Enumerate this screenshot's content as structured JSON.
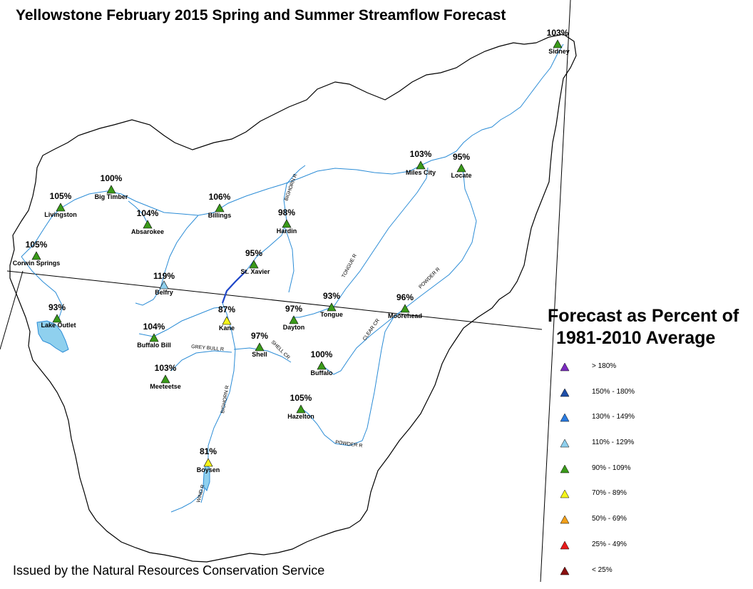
{
  "map": {
    "title": "Yellowstone February 2015 Spring and Summer Streamflow Forecast",
    "footer": "Issued by the Natural Resources Conservation Service",
    "legend": {
      "title_line1": "Forecast as Percent of",
      "title_line2": "1981-2010 Average",
      "items": [
        {
          "label": "> 180%",
          "color": "#7b2bbf"
        },
        {
          "label": "150% - 180%",
          "color": "#1f4fa8"
        },
        {
          "label": "130% - 149%",
          "color": "#2a7be0"
        },
        {
          "label": "110% - 129%",
          "color": "#8fd0ee"
        },
        {
          "label": "90% - 109%",
          "color": "#3a9a1a"
        },
        {
          "label": "70% - 89%",
          "color": "#f4f41a"
        },
        {
          "label": "50% - 69%",
          "color": "#f2a01a"
        },
        {
          "label": "25% - 49%",
          "color": "#e81a1a"
        },
        {
          "label": "< 25%",
          "color": "#8a1010"
        }
      ]
    },
    "stations": [
      {
        "name": "Sidney",
        "percent": "103%",
        "color": "#3a9a1a"
      },
      {
        "name": "Miles City",
        "percent": "103%",
        "color": "#3a9a1a"
      },
      {
        "name": "Locate",
        "percent": "95%",
        "color": "#3a9a1a"
      },
      {
        "name": "Big Timber",
        "percent": "100%",
        "color": "#3a9a1a"
      },
      {
        "name": "Livingston",
        "percent": "105%",
        "color": "#3a9a1a"
      },
      {
        "name": "Billings",
        "percent": "106%",
        "color": "#3a9a1a"
      },
      {
        "name": "Absarokee",
        "percent": "104%",
        "color": "#3a9a1a"
      },
      {
        "name": "Hardin",
        "percent": "98%",
        "color": "#3a9a1a"
      },
      {
        "name": "Corwin Springs",
        "percent": "105%",
        "color": "#3a9a1a"
      },
      {
        "name": "St. Xavier",
        "percent": "95%",
        "color": "#3a9a1a"
      },
      {
        "name": "Belfry",
        "percent": "119%",
        "color": "#8fd0ee"
      },
      {
        "name": "Tongue",
        "percent": "93%",
        "color": "#3a9a1a"
      },
      {
        "name": "Moorehead",
        "percent": "96%",
        "color": "#3a9a1a"
      },
      {
        "name": "Lake Outlet",
        "percent": "93%",
        "color": "#3a9a1a"
      },
      {
        "name": "Kane",
        "percent": "87%",
        "color": "#f4f41a"
      },
      {
        "name": "Dayton",
        "percent": "97%",
        "color": "#3a9a1a"
      },
      {
        "name": "Buffalo Bill",
        "percent": "104%",
        "color": "#3a9a1a"
      },
      {
        "name": "Shell",
        "percent": "97%",
        "color": "#3a9a1a"
      },
      {
        "name": "Buffalo",
        "percent": "100%",
        "color": "#3a9a1a"
      },
      {
        "name": "Meeteetse",
        "percent": "103%",
        "color": "#3a9a1a"
      },
      {
        "name": "Hazelton",
        "percent": "105%",
        "color": "#3a9a1a"
      },
      {
        "name": "Boysen",
        "percent": "81%",
        "color": "#f4f41a"
      }
    ],
    "rivers": [
      {
        "name": "BIGHORN R"
      },
      {
        "name": "TONGUE R"
      },
      {
        "name": "POWDER R"
      },
      {
        "name": "CLEAR CR"
      },
      {
        "name": "GREY BULL R"
      },
      {
        "name": "SHELL CR"
      },
      {
        "name": "BIGHORN R"
      },
      {
        "name": "POWDER R"
      },
      {
        "name": "WIND R"
      }
    ]
  }
}
